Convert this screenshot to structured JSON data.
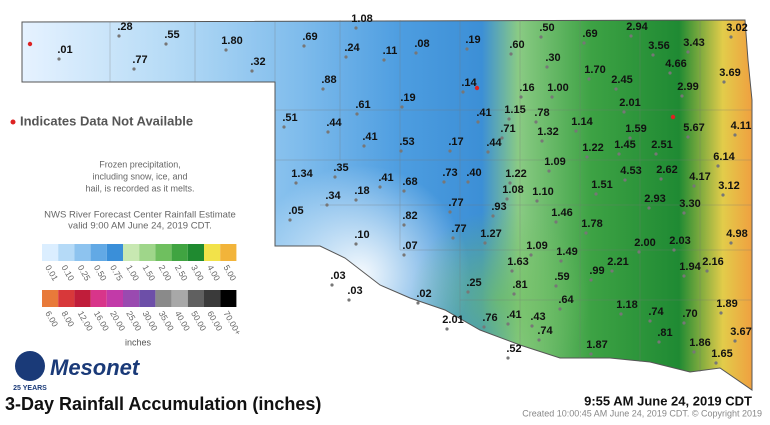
{
  "title": "3-Day Rainfall Accumulation (inches)",
  "timestamp": "9:55 AM June 24, 2019 CDT",
  "created": "Created 10:00:45 AM June 24, 2019 CDT. © Copyright 2019",
  "logo": {
    "name": "Mesonet",
    "badge": "25 YEARS"
  },
  "notes": {
    "na": "Indicates Data Not Available",
    "frozen": [
      "Frozen precipitation,",
      "including snow, ice, and",
      "hail, is recorded as it melts."
    ],
    "nws": [
      "NWS River Forecast Center Rainfall Estimate",
      "valid 9:00 AM June 24, 2019 CDT."
    ]
  },
  "legend": {
    "unit": "inches",
    "row1": [
      {
        "label": "0.01",
        "color": "#dbeeff"
      },
      {
        "label": "0.10",
        "color": "#b5daf7"
      },
      {
        "label": "0.25",
        "color": "#8dc3ef"
      },
      {
        "label": "0.50",
        "color": "#62a9e5"
      },
      {
        "label": "0.75",
        "color": "#3a8fd9"
      },
      {
        "label": "1.00",
        "color": "#c8e8b2"
      },
      {
        "label": "1.50",
        "color": "#9fd68a"
      },
      {
        "label": "2.00",
        "color": "#6fbf5f"
      },
      {
        "label": "2.50",
        "color": "#40a441"
      },
      {
        "label": "3.00",
        "color": "#1f8a30"
      },
      {
        "label": "4.00",
        "color": "#f2e24a"
      },
      {
        "label": "5.00",
        "color": "#f2b43a"
      }
    ],
    "row2": [
      {
        "label": "6.00",
        "color": "#e87a3a"
      },
      {
        "label": "8.00",
        "color": "#d8383a"
      },
      {
        "label": "12.00",
        "color": "#c01d3a"
      },
      {
        "label": "16.00",
        "color": "#d8358a"
      },
      {
        "label": "20.00",
        "color": "#c23aa8"
      },
      {
        "label": "25.00",
        "color": "#9a4ab0"
      },
      {
        "label": "30.00",
        "color": "#6d4fa8"
      },
      {
        "label": "35.00",
        "color": "#8a8a8a"
      },
      {
        "label": "40.00",
        "color": "#a8a8a8"
      },
      {
        "label": "50.00",
        "color": "#606060"
      },
      {
        "label": "60.00",
        "color": "#3a3a3a"
      },
      {
        "label": "70.00+",
        "color": "#000000"
      }
    ]
  },
  "stations": [
    ".28",
    ".01",
    ".77",
    ".55",
    "1.80",
    ".32",
    ".69",
    "1.08",
    ".24",
    ".11",
    ".08",
    ".19",
    ".60",
    ".50",
    ".69",
    "2.94",
    "3.02",
    "3.56",
    "3.43",
    "4.66",
    "3.69",
    ".30",
    "1.70",
    "2.45",
    "2.99",
    ".88",
    ".14",
    ".16",
    "1.00",
    ".19",
    ".61",
    "2.01",
    ".51",
    ".44",
    ".41",
    "1.15",
    ".78",
    "1.14",
    "1.59",
    "5.67",
    "4.11",
    ".41",
    ".53",
    ".17",
    ".71",
    "1.32",
    ".44",
    "1.22",
    "1.45",
    "2.51",
    "6.14",
    ".35",
    ".73",
    ".40",
    "1.22",
    "1.09",
    "4.53",
    "2.62",
    "4.17",
    "1.34",
    ".41",
    ".68",
    "1.08",
    "1.10",
    "1.51",
    "3.12",
    ".34",
    ".18",
    ".77",
    ".93",
    "2.93",
    "3.30",
    ".05",
    ".82",
    "1.46",
    "1.78",
    ".10",
    ".77",
    "1.27",
    "4.98",
    ".07",
    "1.09",
    "1.49",
    "2.00",
    "2.03",
    "1.63",
    "2.21",
    "1.94",
    "2.16",
    ".03",
    ".59",
    ".99",
    ".25",
    ".81",
    ".03",
    ".02",
    ".64",
    "1.89",
    "1.18",
    ".74",
    ".70",
    "2.01",
    ".76",
    ".41",
    ".43",
    ".74",
    ".81",
    "3.67",
    ".52",
    "1.87",
    "1.86",
    "1.65"
  ]
}
